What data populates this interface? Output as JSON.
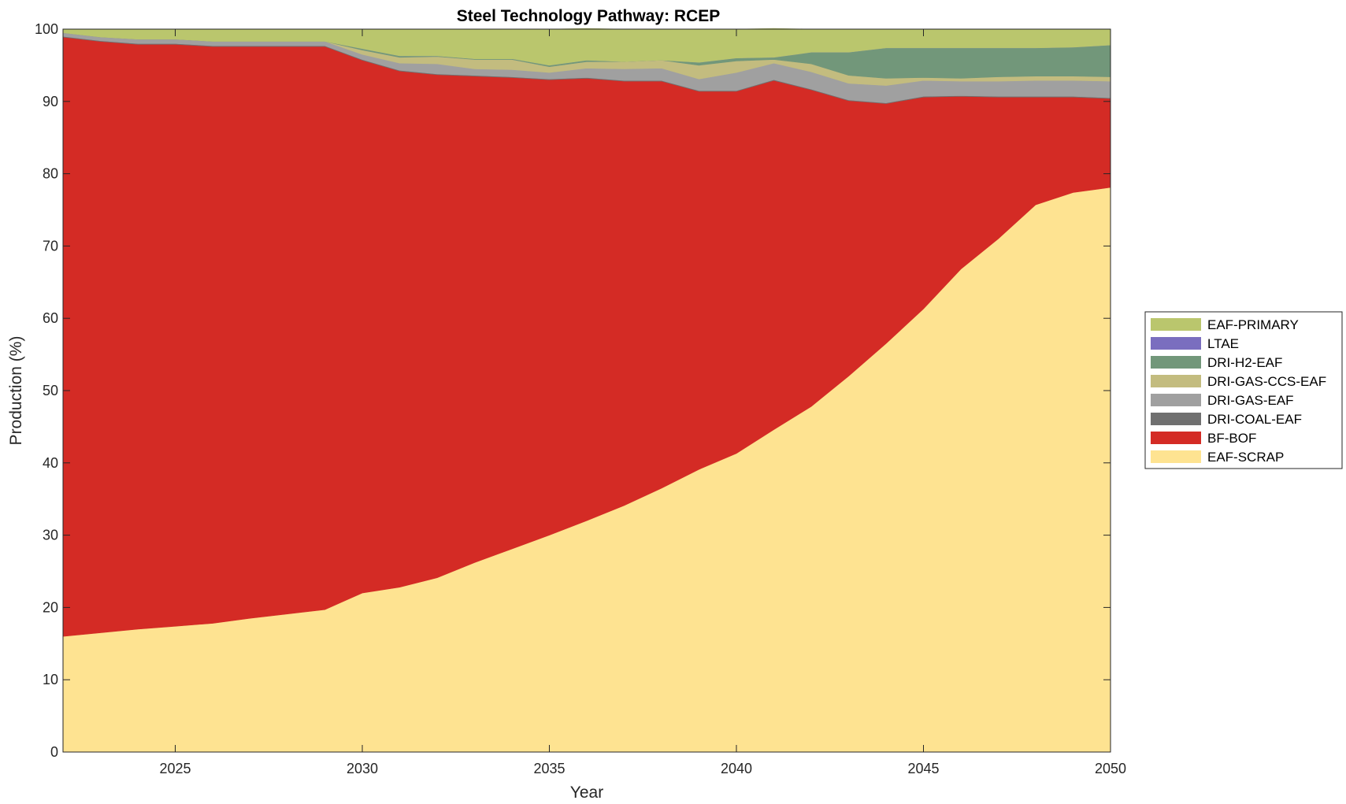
{
  "chart_data": {
    "type": "area",
    "title": "Steel Technology Pathway: RCEP",
    "xlabel": "Year",
    "ylabel": "Production (%)",
    "xlim": [
      2022,
      2050
    ],
    "ylim": [
      0,
      100
    ],
    "x_ticks": [
      2025,
      2030,
      2035,
      2040,
      2045,
      2050
    ],
    "y_ticks": [
      0,
      10,
      20,
      30,
      40,
      50,
      60,
      70,
      80,
      90,
      100
    ],
    "grid": false,
    "stacked": true,
    "legend_position": "right",
    "x": [
      2022,
      2023,
      2024,
      2025,
      2026,
      2027,
      2028,
      2029,
      2030,
      2031,
      2032,
      2033,
      2034,
      2035,
      2036,
      2037,
      2038,
      2039,
      2040,
      2041,
      2042,
      2043,
      2044,
      2045,
      2046,
      2047,
      2048,
      2049,
      2050
    ],
    "series": [
      {
        "name": "EAF-SCRAP",
        "color": "#fee391",
        "values": [
          16.0,
          16.5,
          17.0,
          17.4,
          17.8,
          18.5,
          19.1,
          19.7,
          22.0,
          22.8,
          24.1,
          26.2,
          28.1,
          30.0,
          32.0,
          34.1,
          36.5,
          39.1,
          41.3,
          44.6,
          47.8,
          52.0,
          56.5,
          61.3,
          66.8,
          71.0,
          75.7,
          77.4,
          78.1
        ]
      },
      {
        "name": "BF-BOF",
        "color": "#d42b25",
        "values": [
          82.9,
          81.8,
          80.9,
          80.5,
          79.8,
          79.1,
          78.5,
          77.9,
          73.7,
          71.4,
          69.6,
          67.3,
          65.2,
          63.0,
          61.2,
          58.7,
          56.3,
          52.3,
          50.1,
          48.3,
          43.8,
          38.1,
          33.2,
          29.3,
          23.9,
          19.6,
          14.9,
          13.2,
          12.3
        ]
      },
      {
        "name": "DRI-COAL-EAF",
        "color": "#707070",
        "values": [
          0.1,
          0.1,
          0.1,
          0.1,
          0.1,
          0.1,
          0.1,
          0.1,
          0.1,
          0.1,
          0.1,
          0.1,
          0.1,
          0.1,
          0.1,
          0.1,
          0.1,
          0.1,
          0.1,
          0.1,
          0.1,
          0.1,
          0.1,
          0.1,
          0.1,
          0.1,
          0.1,
          0.1,
          0.1
        ]
      },
      {
        "name": "DRI-GAS-EAF",
        "color": "#a0a0a0",
        "values": [
          0.5,
          0.5,
          0.6,
          0.6,
          0.6,
          0.6,
          0.6,
          0.6,
          0.7,
          1.0,
          1.4,
          0.9,
          1.0,
          0.9,
          1.3,
          1.6,
          1.7,
          1.6,
          2.5,
          2.3,
          2.4,
          2.3,
          2.4,
          2.2,
          2.0,
          2.1,
          2.2,
          2.2,
          2.3
        ]
      },
      {
        "name": "DRI-GAS-CCS-EAF",
        "color": "#c3bc7f",
        "values": [
          0.0,
          0.0,
          0.0,
          0.0,
          0.0,
          0.0,
          0.0,
          0.0,
          0.6,
          0.8,
          1.0,
          1.3,
          1.4,
          0.8,
          0.9,
          1.0,
          1.1,
          1.9,
          1.6,
          0.5,
          1.1,
          1.1,
          1.0,
          0.4,
          0.4,
          0.6,
          0.6,
          0.6,
          0.6
        ]
      },
      {
        "name": "DRI-H2-EAF",
        "color": "#72977a",
        "values": [
          0.0,
          0.0,
          0.0,
          0.0,
          0.0,
          0.0,
          0.0,
          0.0,
          0.2,
          0.2,
          0.1,
          0.1,
          0.1,
          0.2,
          0.2,
          0.0,
          0.0,
          0.4,
          0.4,
          0.3,
          1.6,
          3.2,
          4.2,
          4.1,
          4.2,
          4.0,
          3.9,
          4.0,
          4.4
        ]
      },
      {
        "name": "LTAE",
        "color": "#7a6ebf",
        "values": [
          0.0,
          0.0,
          0.0,
          0.0,
          0.0,
          0.0,
          0.0,
          0.0,
          0.0,
          0.0,
          0.0,
          0.0,
          0.0,
          0.0,
          0.0,
          0.0,
          0.0,
          0.0,
          0.0,
          0.0,
          0.0,
          0.0,
          0.0,
          0.0,
          0.0,
          0.0,
          0.0,
          0.0,
          0.0
        ]
      },
      {
        "name": "EAF-PRIMARY",
        "color": "#bac66d",
        "values": [
          0.5,
          1.1,
          1.4,
          1.4,
          1.7,
          1.7,
          1.7,
          1.7,
          2.7,
          3.7,
          3.7,
          4.1,
          4.1,
          5.0,
          4.4,
          4.5,
          4.3,
          4.6,
          4.0,
          4.0,
          3.2,
          3.2,
          2.6,
          2.6,
          2.6,
          2.6,
          2.6,
          2.5,
          2.2
        ]
      }
    ],
    "legend": [
      "EAF-PRIMARY",
      "LTAE",
      "DRI-H2-EAF",
      "DRI-GAS-CCS-EAF",
      "DRI-GAS-EAF",
      "DRI-COAL-EAF",
      "BF-BOF",
      "EAF-SCRAP"
    ]
  }
}
